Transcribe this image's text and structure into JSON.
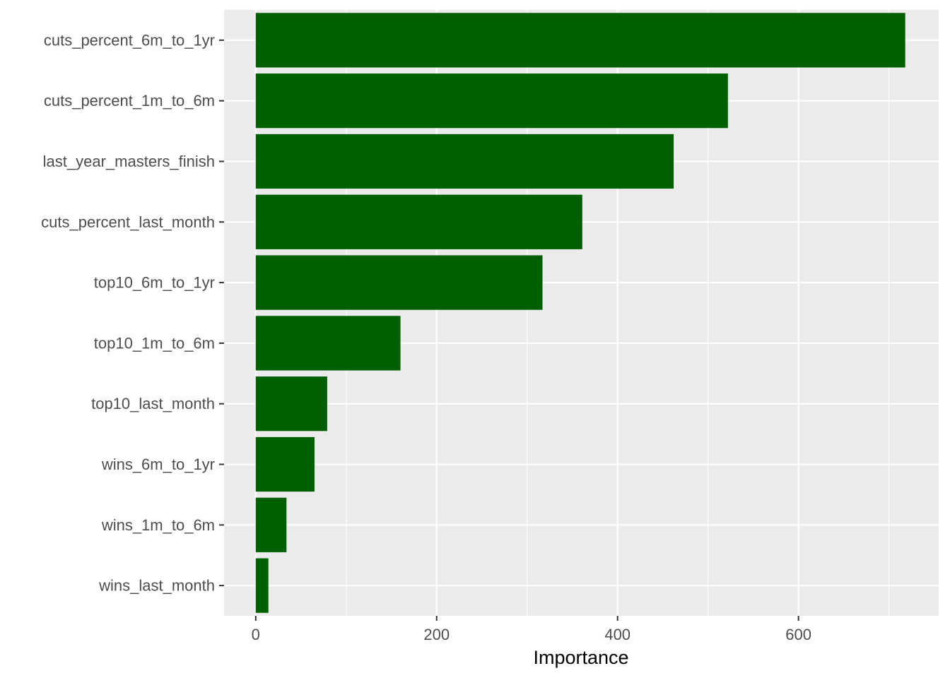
{
  "chart_data": {
    "type": "bar",
    "orientation": "horizontal",
    "categories": [
      "cuts_percent_6m_to_1yr",
      "cuts_percent_1m_to_6m",
      "last_year_masters_finish",
      "cuts_percent_last_month",
      "top10_6m_to_1yr",
      "top10_1m_to_6m",
      "top10_last_month",
      "wins_6m_to_1yr",
      "wins_1m_to_6m",
      "wins_last_month"
    ],
    "values": [
      718,
      522,
      462,
      361,
      317,
      160,
      79,
      65,
      34,
      14
    ],
    "title": "",
    "xlabel": "Importance",
    "ylabel": "",
    "xlim": [
      -35,
      755
    ],
    "x_ticks": [
      0,
      200,
      400,
      600
    ],
    "x_tick_labels": [
      "0",
      "200",
      "400",
      "600"
    ],
    "grid": true,
    "legend": "none",
    "bar_color": "#006000",
    "panel_background": "#ebebeb",
    "grid_color": "#ffffff"
  }
}
